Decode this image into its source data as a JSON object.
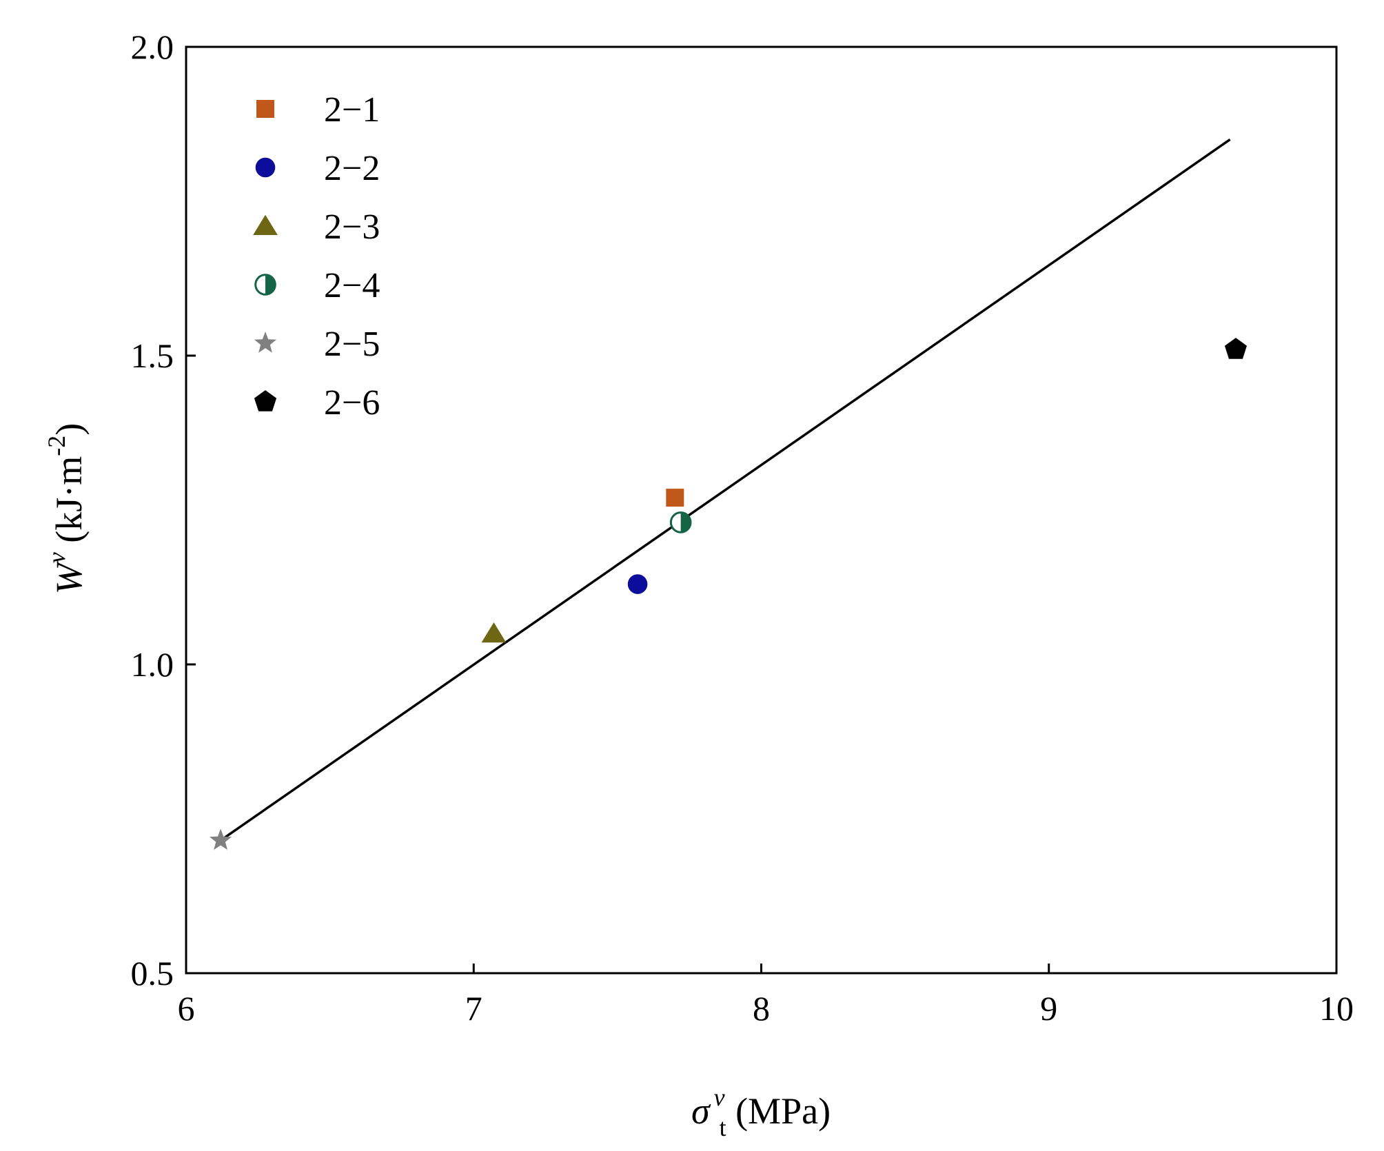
{
  "chart_data": {
    "type": "scatter",
    "title": "",
    "xlabel": {
      "main": "σ",
      "sup": "v",
      "sub": "t",
      "unit": " (MPa)"
    },
    "ylabel": {
      "main": "W",
      "sup": "v",
      "unit_prefix": " (kJ·m",
      "unit_exp": "-2",
      "unit_suffix": ")"
    },
    "xlim": [
      6,
      10
    ],
    "ylim": [
      0.5,
      2.0
    ],
    "xticks": [
      6,
      7,
      8,
      9,
      10
    ],
    "xtick_labels": [
      "6",
      "7",
      "8",
      "9",
      "10"
    ],
    "yticks": [
      0.5,
      1.0,
      1.5,
      2.0
    ],
    "ytick_labels": [
      "0.5",
      "1.0",
      "1.5",
      "2.0"
    ],
    "grid": false,
    "legend_position": "top-left",
    "series": [
      {
        "name": "2−1",
        "marker": "square",
        "color": "#c0581c",
        "points": [
          {
            "x": 7.7,
            "y": 1.27
          }
        ]
      },
      {
        "name": "2−2",
        "marker": "circle",
        "color": "#0d0d9c",
        "points": [
          {
            "x": 7.57,
            "y": 1.13
          }
        ]
      },
      {
        "name": "2−3",
        "marker": "triangle",
        "color": "#6d6612",
        "points": [
          {
            "x": 7.07,
            "y": 1.05
          }
        ]
      },
      {
        "name": "2−4",
        "marker": "half-circle",
        "color": "#146446",
        "points": [
          {
            "x": 7.72,
            "y": 1.23
          }
        ]
      },
      {
        "name": "2−5",
        "marker": "star",
        "color": "#808080",
        "points": [
          {
            "x": 6.12,
            "y": 0.715
          }
        ]
      },
      {
        "name": "2−6",
        "marker": "pentagon",
        "color": "#000000",
        "points": [
          {
            "x": 9.65,
            "y": 1.51
          }
        ]
      }
    ],
    "fit_line": {
      "color": "#000000",
      "points": [
        {
          "x": 6.12,
          "y": 0.715
        },
        {
          "x": 9.63,
          "y": 1.85
        }
      ]
    }
  }
}
